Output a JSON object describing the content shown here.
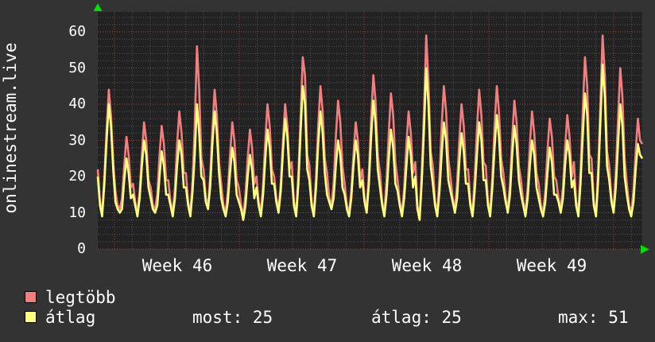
{
  "page": {
    "vertical_title": "onlinestream.live"
  },
  "colors": {
    "background": "#333333",
    "plot_background": "#222222",
    "grid_minor": "#525252",
    "grid_major": "#a33c3c",
    "text": "#ffffff",
    "axis_arrow": "#00dd00",
    "series_legtobb": "#f08080",
    "series_atlag": "#ffff80"
  },
  "chart_data": {
    "type": "line",
    "title": "onlinestream.live",
    "x_tick_labels": [
      "Week 46",
      "Week 47",
      "Week 48",
      "Week 49"
    ],
    "y_tick_labels": [
      "0",
      "10",
      "20",
      "30",
      "40",
      "50",
      "60"
    ],
    "y_tick_values": [
      0,
      10,
      20,
      30,
      40,
      50,
      60
    ],
    "ylim": [
      0,
      65.5
    ],
    "x_span_days": 31,
    "samples_per_day": 8,
    "grid": "dotted; minor lines every 2 units and every day, major red lines every 10 units and every week",
    "legend_position": "bottom-left",
    "series": [
      {
        "name": "legtöbb",
        "color": "#f08080",
        "values": [
          22,
          13,
          10,
          20,
          33,
          44,
          37,
          24,
          16,
          12,
          11,
          14,
          23,
          31,
          26,
          17,
          18,
          13,
          10,
          16,
          26,
          35,
          30,
          19,
          17,
          12,
          11,
          15,
          26,
          34,
          29,
          19,
          19,
          13,
          10,
          17,
          29,
          38,
          32,
          21,
          21,
          13,
          10,
          19,
          34,
          56,
          44,
          25,
          22,
          14,
          12,
          20,
          33,
          44,
          37,
          24,
          18,
          12,
          10,
          16,
          26,
          35,
          30,
          19,
          17,
          12,
          9,
          15,
          25,
          33,
          28,
          18,
          20,
          13,
          10,
          18,
          30,
          40,
          34,
          22,
          20,
          14,
          11,
          18,
          30,
          40,
          34,
          22,
          24,
          13,
          10,
          21,
          36,
          53,
          48,
          26,
          23,
          13,
          10,
          20,
          34,
          45,
          38,
          25,
          21,
          14,
          12,
          18,
          31,
          41,
          35,
          23,
          18,
          12,
          10,
          16,
          26,
          35,
          30,
          19,
          22,
          14,
          11,
          21,
          36,
          48,
          41,
          26,
          21,
          13,
          10,
          19,
          32,
          43,
          37,
          24,
          19,
          13,
          10,
          17,
          29,
          38,
          32,
          21,
          24,
          12,
          9,
          22,
          38,
          59,
          46,
          27,
          23,
          13,
          10,
          20,
          34,
          45,
          38,
          25,
          20,
          14,
          11,
          18,
          30,
          40,
          34,
          22,
          22,
          13,
          10,
          20,
          33,
          44,
          37,
          24,
          23,
          13,
          10,
          20,
          34,
          45,
          38,
          25,
          21,
          14,
          11,
          18,
          31,
          41,
          35,
          23,
          19,
          13,
          10,
          17,
          29,
          38,
          32,
          21,
          18,
          12,
          10,
          16,
          27,
          36,
          31,
          20,
          19,
          14,
          11,
          17,
          28,
          37,
          31,
          20,
          24,
          13,
          10,
          21,
          38,
          53,
          45,
          26,
          25,
          13,
          10,
          22,
          40,
          59,
          48,
          27,
          23,
          14,
          11,
          21,
          36,
          50,
          42,
          25,
          18,
          12,
          10,
          16,
          27,
          36,
          30,
          29
        ]
      },
      {
        "name": "átlag",
        "color": "#ffff80",
        "values": [
          20,
          12,
          9,
          18,
          30,
          40,
          34,
          22,
          13,
          11,
          10,
          11,
          19,
          25,
          21,
          14,
          15,
          12,
          9,
          14,
          23,
          30,
          26,
          17,
          14,
          11,
          10,
          12,
          20,
          27,
          23,
          15,
          15,
          12,
          9,
          14,
          23,
          30,
          26,
          17,
          17,
          12,
          9,
          16,
          26,
          40,
          32,
          20,
          19,
          13,
          11,
          17,
          29,
          38,
          32,
          21,
          14,
          11,
          9,
          13,
          21,
          28,
          24,
          15,
          13,
          11,
          8,
          12,
          20,
          26,
          22,
          14,
          17,
          12,
          9,
          15,
          25,
          33,
          28,
          18,
          18,
          13,
          10,
          16,
          27,
          36,
          31,
          20,
          20,
          12,
          9,
          18,
          32,
          45,
          40,
          22,
          19,
          12,
          9,
          17,
          29,
          38,
          32,
          21,
          15,
          13,
          11,
          14,
          23,
          30,
          26,
          17,
          15,
          11,
          9,
          14,
          23,
          30,
          26,
          17,
          19,
          13,
          10,
          18,
          31,
          41,
          35,
          22,
          17,
          12,
          9,
          15,
          25,
          33,
          28,
          18,
          16,
          12,
          9,
          14,
          23,
          31,
          26,
          17,
          20,
          11,
          8,
          19,
          33,
          50,
          40,
          23,
          18,
          12,
          9,
          16,
          26,
          35,
          30,
          19,
          16,
          13,
          10,
          14,
          24,
          32,
          27,
          18,
          18,
          12,
          9,
          16,
          26,
          35,
          30,
          19,
          19,
          12,
          9,
          17,
          28,
          37,
          31,
          20,
          17,
          13,
          10,
          15,
          26,
          34,
          29,
          19,
          15,
          12,
          9,
          14,
          23,
          30,
          26,
          17,
          14,
          11,
          9,
          13,
          21,
          28,
          24,
          15,
          15,
          13,
          10,
          14,
          23,
          30,
          26,
          17,
          19,
          12,
          9,
          18,
          31,
          43,
          37,
          21,
          21,
          12,
          9,
          19,
          35,
          51,
          42,
          23,
          19,
          13,
          10,
          17,
          29,
          40,
          34,
          20,
          15,
          11,
          9,
          13,
          22,
          29,
          26,
          25
        ]
      }
    ]
  },
  "legend": {
    "items": [
      {
        "label": "legtöbb",
        "color": "#f08080"
      },
      {
        "label": "átlag",
        "color": "#ffff80"
      }
    ]
  },
  "summary": {
    "most": "most: 25",
    "atlag": "átlag: 25",
    "max": "max: 51"
  }
}
